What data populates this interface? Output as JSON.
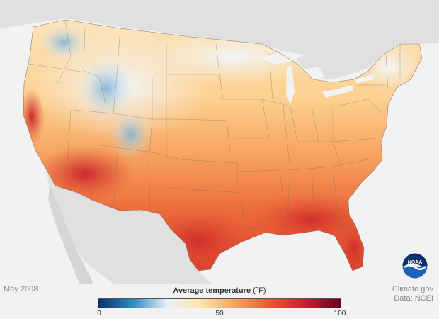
{
  "map": {
    "date_label": "May 2008",
    "credit_line1": "Climate.gov",
    "credit_line2": "Data: NCEI",
    "logo_text": "NOAA"
  },
  "legend": {
    "title": "Average temperature",
    "unit": "(°F)",
    "min": 0,
    "max": 100,
    "ticks": [
      "0",
      "50",
      "100"
    ],
    "colors": [
      "#08306b",
      "#2b8cc4",
      "#e9f2f8",
      "#fde3a7",
      "#f4a259",
      "#e8542f",
      "#c42030",
      "#67001f"
    ]
  },
  "colors": {
    "background": "#f2f2f2",
    "land_outside": "#e0e0e0",
    "hot": "#d7301f",
    "warm": "#f08a4b",
    "mild": "#fcd59c",
    "cool": "#eef3f8",
    "cold": "#8fbedf"
  }
}
